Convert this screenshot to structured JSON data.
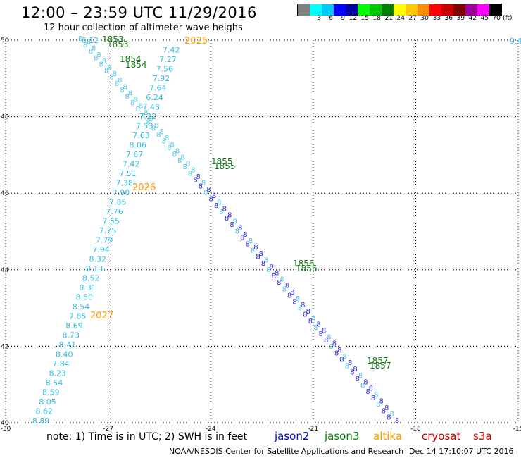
{
  "title": "12:00 – 23:59 UTC 11/29/2016",
  "subtitle": "12 hour collection of altimeter wave heighs",
  "scale": {
    "labels": [
      "",
      "3",
      "6",
      "9",
      "12",
      "15",
      "18",
      "21",
      "24",
      "27",
      "30",
      "33",
      "36",
      "39",
      "42",
      "45",
      "70"
    ],
    "colors": [
      "#808080",
      "#00ffff",
      "#00c8ff",
      "#0000ff",
      "#0000a0",
      "#00ff00",
      "#00c800",
      "#008000",
      "#ffff00",
      "#ffc800",
      "#ff8c00",
      "#ff0000",
      "#c80000",
      "#800000",
      "#a000a0",
      "#ff00ff",
      "#000000"
    ],
    "unit": "(ft)"
  },
  "axes": {
    "x_ticks": [
      "-30",
      "-27",
      "-24",
      "-21",
      "-18",
      "-15"
    ],
    "y_ticks": [
      "50",
      "48",
      "46",
      "44",
      "42",
      "40"
    ]
  },
  "map_view": {
    "lon_range": [
      -30,
      -15
    ],
    "lat_range": [
      40,
      50
    ],
    "grid": "dotted"
  },
  "colors": {
    "jason2": "#0000cc",
    "jason3": "#008000",
    "altika": "#ff9900",
    "cryosat": "#cc0000",
    "s3a": "#cc0000",
    "track_light": "#33bbdd",
    "track_dark": "#0000cc",
    "time_green": "#117711"
  },
  "track_left": {
    "values": [
      "6.12",
      "7.42",
      "7.27",
      "7.56",
      "7.92",
      "7.64",
      "6.24",
      "7.43",
      "7.22",
      "7.53",
      "7.63",
      "8.06",
      "7.67",
      "7.42",
      "7.51",
      "7.38",
      "7.98",
      "7.85",
      "7.76",
      "7.55",
      "7.75",
      "7.79",
      "7.94",
      "8.32",
      "8.13",
      "8.52",
      "8.31",
      "8.50",
      "8.54",
      "7.85",
      "8.69",
      "8.73",
      "8.41",
      "8.40",
      "7.84",
      "8.23",
      "8.54",
      "8.59",
      "8.05",
      "8.62",
      "8.89"
    ],
    "times": [
      "2025",
      "2026",
      "2027"
    ]
  },
  "track_right": {
    "times": [
      "1853",
      "1853",
      "1854",
      "1854",
      "1855",
      "1855",
      "1856",
      "1856",
      "1857",
      "1857"
    ],
    "edge_value": "9.4"
  },
  "legend": {
    "jason2": "jason2",
    "jason3": "jason3",
    "altika": "altika",
    "cryosat": "cryosat",
    "s3a": "s3a"
  },
  "note": "note: 1) Time is in UTC; 2) SWH is in feet",
  "footer": {
    "credit": "NOAA/NESDIS Center for Satellite Applications and Research",
    "timestamp": "Dec 14 17:10:07 UTC 2016"
  }
}
